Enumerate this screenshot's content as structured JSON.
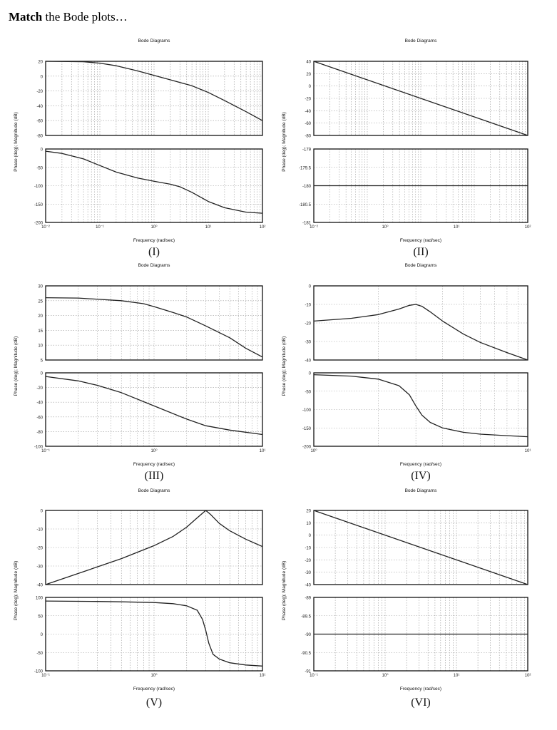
{
  "question": {
    "bold": "Match",
    "rest": " the Bode plots…"
  },
  "common": {
    "title": "Bode Diagrams",
    "xlabel": "Frequency (rad/sec)",
    "ylabel": "Phase (deg); Magnitude (dB)"
  },
  "chart_data": [
    {
      "label": "(I)",
      "type": "line",
      "xscale": "log",
      "x_ticks": [
        "10⁻²",
        "10⁻¹",
        "10⁰",
        "10¹",
        "10²"
      ],
      "magnitude": {
        "ylim": [
          -80,
          20
        ],
        "yticks": [
          "20",
          "0",
          "-20",
          "-40",
          "-60",
          "-80"
        ],
        "x": [
          0.01,
          0.05,
          0.1,
          0.2,
          0.5,
          1,
          2,
          5,
          10,
          20,
          50,
          100
        ],
        "y": [
          20,
          19.4,
          17.5,
          14,
          7,
          1,
          -5,
          -13,
          -22,
          -33,
          -48,
          -60
        ]
      },
      "phase": {
        "ylim": [
          -200,
          0
        ],
        "yticks": [
          "0",
          "-50",
          "-100",
          "-150",
          "-200"
        ],
        "x": [
          0.01,
          0.02,
          0.05,
          0.1,
          0.2,
          0.5,
          1,
          2,
          3,
          5,
          10,
          20,
          50,
          100
        ],
        "y": [
          -6,
          -12,
          -27,
          -45,
          -63,
          -79,
          -88,
          -96,
          -103,
          -118,
          -143,
          -160,
          -172,
          -175
        ]
      }
    },
    {
      "label": "(II)",
      "type": "line",
      "xscale": "log",
      "x_ticks": [
        "10⁻²",
        "10⁰",
        "10¹",
        "10²"
      ],
      "magnitude": {
        "ylim": [
          -80,
          40
        ],
        "yticks": [
          "40",
          "20",
          "0",
          "-20",
          "-40",
          "-60",
          "-80"
        ],
        "x": [
          0.01,
          100
        ],
        "y": [
          40,
          -80
        ]
      },
      "phase": {
        "ylim": [
          -181,
          -179
        ],
        "yticks": [
          "-179",
          "-179.5",
          "-180",
          "-180.5",
          "-181"
        ],
        "x": [
          0.01,
          100
        ],
        "y": [
          -180,
          -180
        ]
      }
    },
    {
      "label": "(III)",
      "type": "line",
      "xscale": "log",
      "x_ticks": [
        "10⁻¹",
        "10⁰",
        "10¹"
      ],
      "magnitude": {
        "ylim": [
          5,
          30
        ],
        "yticks": [
          "30",
          "25",
          "20",
          "15",
          "10",
          "5"
        ],
        "x": [
          0.1,
          0.2,
          0.5,
          0.8,
          1,
          1.5,
          2,
          3,
          5,
          7,
          10
        ],
        "y": [
          26,
          25.9,
          25,
          24,
          23,
          21,
          19.5,
          16.5,
          12.5,
          9,
          6
        ]
      },
      "phase": {
        "ylim": [
          -100,
          0
        ],
        "yticks": [
          "0",
          "-20",
          "-40",
          "-60",
          "-80",
          "-100"
        ],
        "x": [
          0.1,
          0.2,
          0.3,
          0.5,
          1,
          2,
          3,
          5,
          10
        ],
        "y": [
          -5,
          -11,
          -17,
          -27,
          -45,
          -63,
          -72,
          -78,
          -84
        ]
      }
    },
    {
      "label": "(IV)",
      "type": "line",
      "xscale": "log",
      "x_ticks": [
        "10⁰",
        "10¹"
      ],
      "magnitude": {
        "ylim": [
          -40,
          0
        ],
        "yticks": [
          "0",
          "-10",
          "-20",
          "-30",
          "-40"
        ],
        "x": [
          1,
          1.5,
          2,
          2.5,
          2.8,
          3,
          3.2,
          3.5,
          4,
          5,
          6,
          8,
          10
        ],
        "y": [
          -19,
          -17.5,
          -15.5,
          -12.5,
          -10.5,
          -10,
          -11,
          -14,
          -19,
          -26,
          -30.5,
          -36,
          -40
        ]
      },
      "phase": {
        "ylim": [
          -200,
          0
        ],
        "yticks": [
          "0",
          "-50",
          "-100",
          "-150",
          "-200"
        ],
        "x": [
          1,
          1.5,
          2,
          2.5,
          2.8,
          3,
          3.2,
          3.5,
          4,
          5,
          6,
          8,
          10
        ],
        "y": [
          -5,
          -9,
          -17,
          -35,
          -60,
          -90,
          -115,
          -135,
          -150,
          -162,
          -167,
          -171,
          -174
        ]
      }
    },
    {
      "label": "(V)",
      "type": "line",
      "xscale": "log",
      "x_ticks": [
        "10⁻¹",
        "10⁰",
        "10¹"
      ],
      "magnitude": {
        "ylim": [
          -40,
          0
        ],
        "yticks": [
          "0",
          "-10",
          "-20",
          "-30",
          "-40"
        ],
        "x": [
          0.1,
          0.2,
          0.5,
          1,
          1.5,
          2,
          2.5,
          3,
          3.3,
          4,
          5,
          7,
          10
        ],
        "y": [
          -40,
          -34,
          -26,
          -19,
          -14,
          -9,
          -4,
          0,
          -2,
          -7,
          -11,
          -15.5,
          -19.5
        ]
      },
      "phase": {
        "ylim": [
          -100,
          100
        ],
        "yticks": [
          "100",
          "50",
          "0",
          "-50",
          "-100"
        ],
        "x": [
          0.1,
          0.3,
          0.5,
          1,
          1.5,
          2,
          2.5,
          2.8,
          3,
          3.2,
          3.5,
          4,
          5,
          7,
          10
        ],
        "y": [
          90,
          89,
          88,
          86,
          83,
          77,
          65,
          40,
          10,
          -25,
          -55,
          -68,
          -78,
          -84,
          -87
        ]
      }
    },
    {
      "label": "(VI)",
      "type": "line",
      "xscale": "log",
      "x_ticks": [
        "10⁻¹",
        "10⁰",
        "10¹",
        "10²"
      ],
      "magnitude": {
        "ylim": [
          -40,
          20
        ],
        "yticks": [
          "20",
          "10",
          "0",
          "-10",
          "-20",
          "-30",
          "-40"
        ],
        "x": [
          0.1,
          100
        ],
        "y": [
          20,
          -40
        ]
      },
      "phase": {
        "ylim": [
          -91,
          -89
        ],
        "yticks": [
          "-89",
          "-89.5",
          "-90",
          "-90.5",
          "-91"
        ],
        "x": [
          0.1,
          100
        ],
        "y": [
          -90,
          -90
        ]
      }
    }
  ]
}
